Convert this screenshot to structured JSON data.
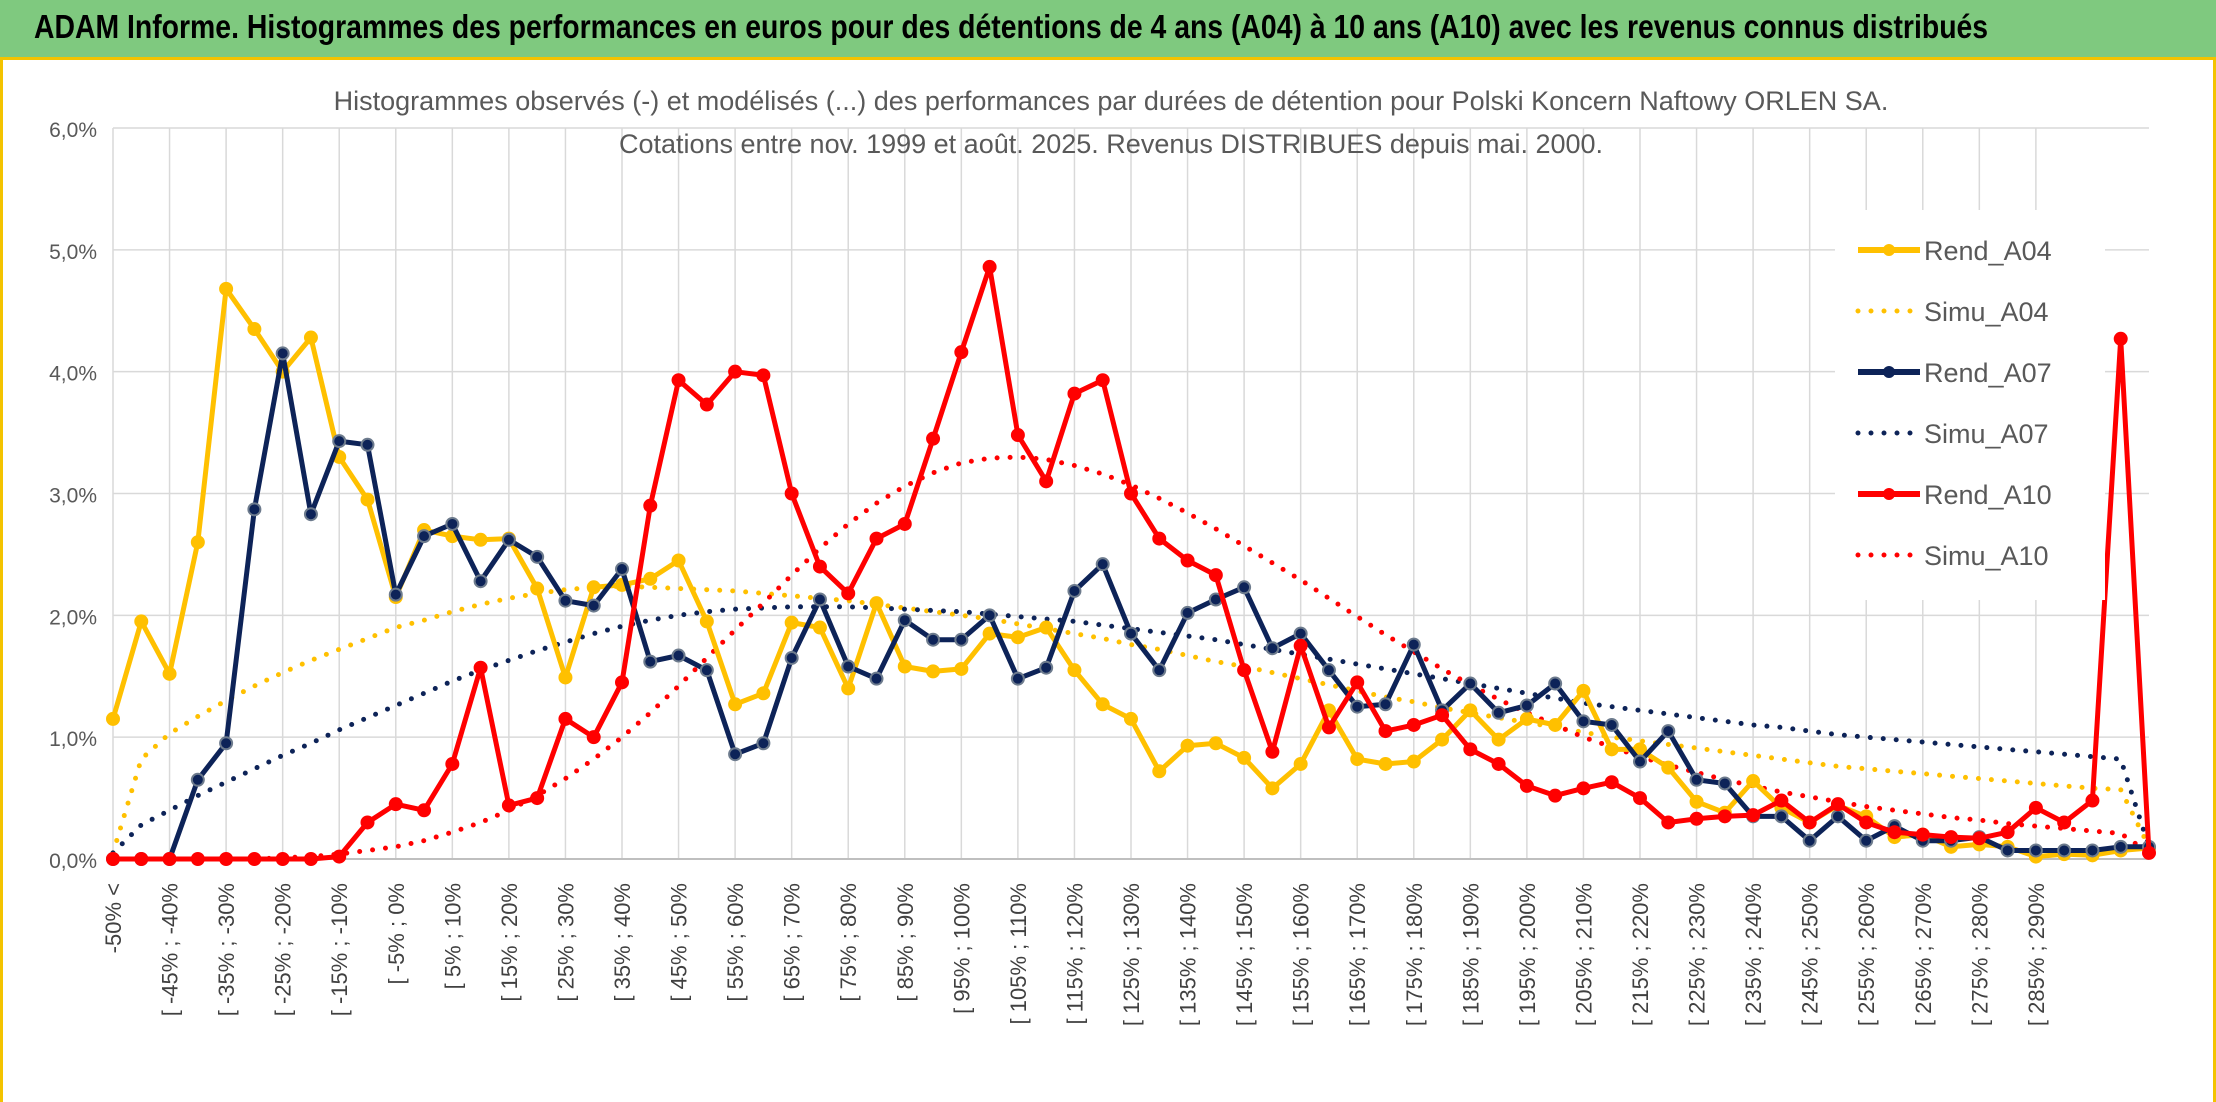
{
  "header": {
    "title": "ADAM Informe. Histogrammes des performances en euros pour des détentions de 4 ans (A04) à 10 ans (A10) avec les revenus connus distribués"
  },
  "chart_data": {
    "type": "line",
    "title": "Histogrammes observés (-) et modélisés (...) des performances par durées de détention pour Polski Koncern Naftowy ORLEN SA.",
    "subtitle": "Cotations entre nov. 1999 et août. 2025. Revenus DISTRIBUES depuis mai. 2000.",
    "ylim": [
      0,
      6
    ],
    "y_ticks": [
      "0,0%",
      "1,0%",
      "2,0%",
      "3,0%",
      "4,0%",
      "5,0%",
      "6,0%"
    ],
    "grid": true,
    "legend_position": "right",
    "x_tick_labels": [
      "-50% <",
      "[ -45% ; -40%",
      "[ -35% ; -30%",
      "[ -25% ; -20%",
      "[ -15% ; -10%",
      "[ -5% ; 0%",
      "[ 5% ; 10%",
      "[ 15% ; 20%",
      "[ 25% ; 30%",
      "[ 35% ; 40%",
      "[ 45% ; 50%",
      "[ 55% ; 60%",
      "[ 65% ; 70%",
      "[ 75% ; 80%",
      "[ 85% ; 90%",
      "[ 95% ; 100%",
      "[ 105% ; 110%",
      "[ 115% ; 120%",
      "[ 125% ; 130%",
      "[ 135% ; 140%",
      "[ 145% ; 150%",
      "[ 155% ; 160%",
      "[ 165% ; 170%",
      "[ 175% ; 180%",
      "[ 185% ; 190%",
      "[ 195% ; 200%",
      "[ 205% ; 210%",
      "[ 215% ; 220%",
      "[ 225% ; 230%",
      "[ 235% ; 240%",
      "[ 245% ; 250%",
      "[ 255% ; 260%",
      "[ 265% ; 270%",
      "[ 275% ; 280%",
      "[ 285% ; 290%"
    ],
    "series": [
      {
        "name": "Rend_A04",
        "style": "solid",
        "color": "#ffc000",
        "values": [
          1.15,
          1.95,
          1.52,
          2.6,
          4.68,
          4.35,
          4.0,
          4.28,
          3.3,
          2.95,
          2.15,
          2.7,
          2.65,
          2.62,
          2.63,
          2.22,
          1.49,
          2.23,
          2.25,
          2.3,
          2.45,
          1.95,
          1.27,
          1.36,
          1.94,
          1.9,
          1.4,
          2.1,
          1.58,
          1.54,
          1.56,
          1.85,
          1.82,
          1.9,
          1.55,
          1.27,
          1.15,
          0.72,
          0.93,
          0.95,
          0.83,
          0.58,
          0.78,
          1.22,
          0.82,
          0.78,
          0.8,
          0.98,
          1.22,
          0.98,
          1.15,
          1.1,
          1.38,
          0.9,
          0.9,
          0.75,
          0.47,
          0.38,
          0.64,
          0.42,
          0.3,
          0.44,
          0.35,
          0.18,
          0.2,
          0.1,
          0.12,
          0.1,
          0.02,
          0.04,
          0.03,
          0.07,
          0.09
        ]
      },
      {
        "name": "Simu_A04",
        "style": "dotted",
        "color": "#ffc000",
        "values": [
          0.05,
          0.82,
          1.03,
          1.17,
          1.3,
          1.42,
          1.53,
          1.63,
          1.72,
          1.81,
          1.9,
          1.96,
          2.03,
          2.09,
          2.14,
          2.18,
          2.21,
          2.23,
          2.24,
          2.23,
          2.22,
          2.21,
          2.2,
          2.18,
          2.16,
          2.14,
          2.12,
          2.09,
          2.06,
          2.03,
          2.0,
          1.97,
          1.93,
          1.89,
          1.85,
          1.81,
          1.76,
          1.72,
          1.67,
          1.62,
          1.58,
          1.53,
          1.48,
          1.43,
          1.38,
          1.33,
          1.29,
          1.24,
          1.2,
          1.16,
          1.12,
          1.08,
          1.04,
          1.0,
          0.97,
          0.94,
          0.91,
          0.88,
          0.85,
          0.82,
          0.79,
          0.76,
          0.74,
          0.72,
          0.7,
          0.68,
          0.66,
          0.64,
          0.62,
          0.6,
          0.58,
          0.57,
          0.1
        ]
      },
      {
        "name": "Rend_A07",
        "style": "solid",
        "color": "#0d2358",
        "values": [
          0.0,
          0.0,
          0.0,
          0.65,
          0.95,
          2.87,
          4.15,
          2.83,
          3.43,
          3.4,
          2.17,
          2.65,
          2.75,
          2.28,
          2.62,
          2.48,
          2.12,
          2.08,
          2.38,
          1.62,
          1.67,
          1.55,
          0.86,
          0.95,
          1.65,
          2.13,
          1.58,
          1.48,
          1.96,
          1.8,
          1.8,
          2.0,
          1.48,
          1.57,
          2.2,
          2.42,
          1.85,
          1.55,
          2.02,
          2.13,
          2.23,
          1.73,
          1.85,
          1.55,
          1.25,
          1.27,
          1.76,
          1.22,
          1.44,
          1.2,
          1.26,
          1.44,
          1.13,
          1.1,
          0.8,
          1.05,
          0.65,
          0.62,
          0.35,
          0.35,
          0.15,
          0.35,
          0.15,
          0.27,
          0.15,
          0.15,
          0.18,
          0.07,
          0.07,
          0.07,
          0.07,
          0.1,
          0.1
        ]
      },
      {
        "name": "Simu_A07",
        "style": "dotted",
        "color": "#0d2358",
        "values": [
          0.05,
          0.28,
          0.4,
          0.52,
          0.63,
          0.74,
          0.85,
          0.95,
          1.06,
          1.16,
          1.26,
          1.36,
          1.46,
          1.55,
          1.63,
          1.71,
          1.78,
          1.85,
          1.91,
          1.96,
          2.0,
          2.03,
          2.05,
          2.06,
          2.07,
          2.07,
          2.07,
          2.06,
          2.05,
          2.04,
          2.03,
          2.01,
          1.99,
          1.97,
          1.95,
          1.92,
          1.89,
          1.86,
          1.83,
          1.8,
          1.76,
          1.72,
          1.68,
          1.64,
          1.6,
          1.56,
          1.52,
          1.48,
          1.44,
          1.4,
          1.36,
          1.32,
          1.28,
          1.25,
          1.22,
          1.19,
          1.16,
          1.13,
          1.1,
          1.08,
          1.05,
          1.02,
          1.0,
          0.98,
          0.96,
          0.94,
          0.92,
          0.9,
          0.88,
          0.86,
          0.84,
          0.82,
          0.1
        ]
      },
      {
        "name": "Rend_A10",
        "style": "solid",
        "color": "#ff0000",
        "values": [
          0.0,
          0.0,
          0.0,
          0.0,
          0.0,
          0.0,
          0.0,
          0.0,
          0.02,
          0.3,
          0.45,
          0.4,
          0.78,
          1.57,
          0.44,
          0.5,
          1.15,
          1.0,
          1.45,
          2.9,
          3.93,
          3.73,
          4.0,
          3.97,
          3.0,
          2.4,
          2.18,
          2.63,
          2.75,
          3.45,
          4.16,
          4.86,
          3.48,
          3.1,
          3.82,
          3.93,
          3.0,
          2.63,
          2.45,
          2.33,
          1.55,
          0.88,
          1.75,
          1.08,
          1.45,
          1.05,
          1.1,
          1.18,
          0.9,
          0.78,
          0.6,
          0.52,
          0.58,
          0.63,
          0.5,
          0.3,
          0.33,
          0.35,
          0.36,
          0.48,
          0.3,
          0.45,
          0.3,
          0.22,
          0.2,
          0.18,
          0.17,
          0.22,
          0.42,
          0.3,
          0.48,
          4.27,
          0.05
        ]
      },
      {
        "name": "Simu_A10",
        "style": "dotted",
        "color": "#ff0000",
        "values": [
          0.0,
          0.0,
          0.0,
          0.0,
          0.0,
          0.0,
          0.01,
          0.02,
          0.04,
          0.07,
          0.1,
          0.15,
          0.22,
          0.3,
          0.4,
          0.52,
          0.66,
          0.82,
          1.0,
          1.2,
          1.42,
          1.65,
          1.88,
          2.1,
          2.33,
          2.55,
          2.75,
          2.92,
          3.06,
          3.17,
          3.25,
          3.29,
          3.3,
          3.28,
          3.23,
          3.16,
          3.07,
          2.96,
          2.84,
          2.71,
          2.57,
          2.43,
          2.29,
          2.14,
          1.99,
          1.84,
          1.7,
          1.56,
          1.43,
          1.31,
          1.2,
          1.1,
          1.0,
          0.92,
          0.84,
          0.77,
          0.71,
          0.65,
          0.6,
          0.55,
          0.51,
          0.47,
          0.43,
          0.4,
          0.37,
          0.34,
          0.32,
          0.29,
          0.27,
          0.25,
          0.23,
          0.21,
          0.05
        ]
      }
    ]
  }
}
